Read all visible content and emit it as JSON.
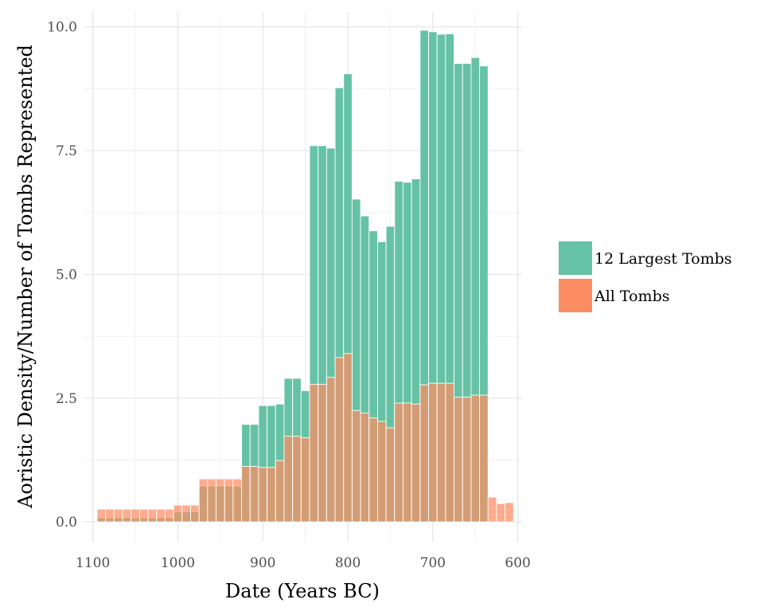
{
  "chart_data": {
    "type": "bar",
    "title": "",
    "xlabel": "Date (Years BC)",
    "ylabel": "Aoristic Density/Number of Tombs Represented",
    "x_reversed": true,
    "xlim": [
      1110,
      595
    ],
    "ylim": [
      -0.4,
      10.3
    ],
    "bin_width": 10,
    "x_ticks": [
      1100,
      1000,
      900,
      800,
      700,
      600
    ],
    "x_tick_labels": [
      "1100",
      "1000",
      "900",
      "800",
      "700",
      "600"
    ],
    "y_ticks": [
      0,
      2.5,
      5,
      7.5,
      10
    ],
    "y_tick_labels": [
      "0.0",
      "2.5",
      "5.0",
      "7.5",
      "10.0"
    ],
    "grid": true,
    "legend_position": "right",
    "x": [
      1090,
      1080,
      1070,
      1060,
      1050,
      1040,
      1030,
      1020,
      1010,
      1000,
      990,
      980,
      970,
      960,
      950,
      940,
      930,
      920,
      910,
      900,
      890,
      880,
      870,
      860,
      850,
      840,
      830,
      820,
      810,
      800,
      790,
      780,
      770,
      760,
      750,
      740,
      730,
      720,
      710,
      700,
      690,
      680,
      670,
      660,
      650,
      640,
      630,
      620,
      610
    ],
    "series": [
      {
        "name": "12 Largest Tombs",
        "color": "#66c2a5",
        "values": [
          0.08,
          0.08,
          0.08,
          0.08,
          0.08,
          0.08,
          0.08,
          0.08,
          0.08,
          0.2,
          0.2,
          0.2,
          0.72,
          0.72,
          0.72,
          0.72,
          0.72,
          1.97,
          1.97,
          2.35,
          2.35,
          2.38,
          2.9,
          2.9,
          2.65,
          7.6,
          7.6,
          7.55,
          8.77,
          9.05,
          6.52,
          6.18,
          5.88,
          5.66,
          5.97,
          6.88,
          6.86,
          6.93,
          9.93,
          9.9,
          9.85,
          9.86,
          9.26,
          9.26,
          9.38,
          9.21,
          null,
          null,
          null
        ]
      },
      {
        "name": "All Tombs",
        "color": "#fc8d62",
        "values": [
          0.26,
          0.26,
          0.26,
          0.26,
          0.26,
          0.26,
          0.26,
          0.26,
          0.26,
          0.34,
          0.34,
          0.34,
          0.87,
          0.87,
          0.87,
          0.87,
          0.87,
          1.12,
          1.12,
          1.1,
          1.1,
          1.24,
          1.73,
          1.73,
          1.7,
          2.78,
          2.78,
          2.92,
          3.32,
          3.4,
          2.25,
          2.2,
          2.1,
          2.03,
          1.9,
          2.4,
          2.4,
          2.38,
          2.77,
          2.8,
          2.8,
          2.8,
          2.52,
          2.52,
          2.56,
          2.56,
          0.5,
          0.37,
          0.39
        ]
      }
    ]
  }
}
